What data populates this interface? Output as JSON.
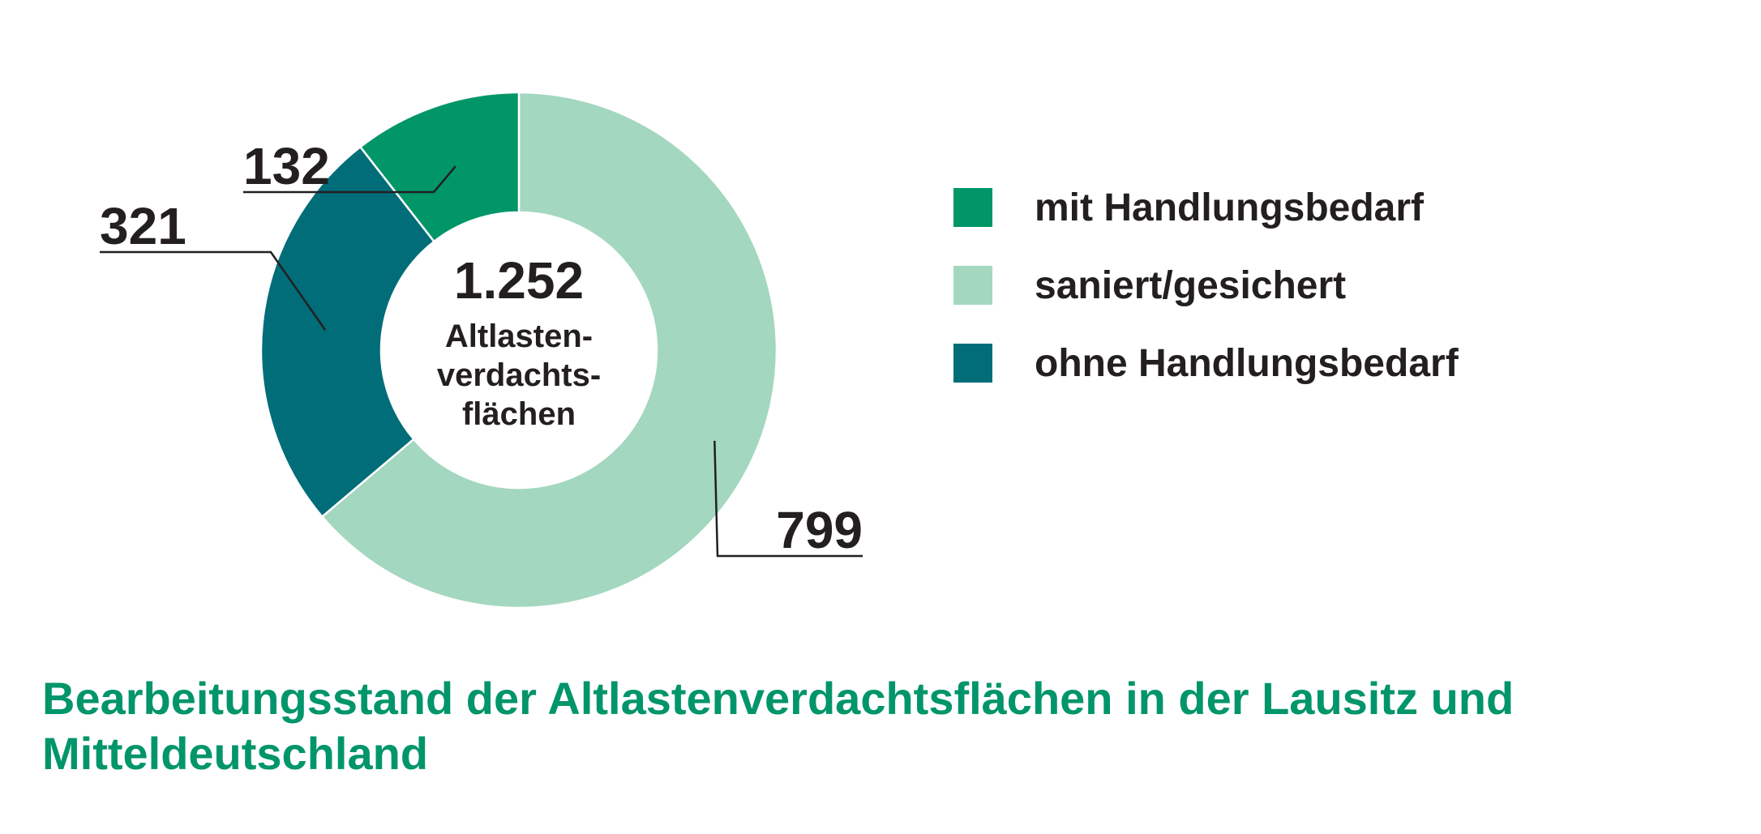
{
  "caption": "Bearbeitungsstand der Altlastenverdachtsflächen in der Lausitz und Mitteldeutschland",
  "chart_data": {
    "type": "pie",
    "donut": true,
    "title": "",
    "center_total": "1.252",
    "center_label": [
      "Altlasten-",
      "verdachts-",
      "flächen"
    ],
    "legend_position": "right",
    "slices": [
      {
        "label": "mit Handlungsbedarf",
        "value": 132,
        "value_label": "132",
        "color": "#009667"
      },
      {
        "label": "saniert/gesichert",
        "value": 799,
        "value_label": "799",
        "color": "#a3d7bf"
      },
      {
        "label": "ohne Handlungsbedarf",
        "value": 321,
        "value_label": "321",
        "color": "#006d79"
      }
    ]
  }
}
